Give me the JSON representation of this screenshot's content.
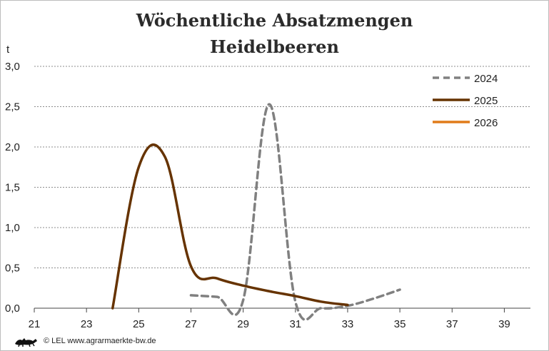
{
  "chart_data": {
    "type": "line",
    "title": "Wöchentliche Absatzmengen",
    "subtitle": "Heidelbeeren",
    "ylabel": "t",
    "xlabel": "",
    "xlim": [
      21,
      40
    ],
    "ylim": [
      0,
      3.0
    ],
    "x_ticks": [
      "21",
      "23",
      "25",
      "27",
      "29",
      "31",
      "33",
      "35",
      "37",
      "39"
    ],
    "y_ticks": [
      "0,0",
      "0,5",
      "1,0",
      "1,5",
      "2,0",
      "2,5",
      "3,0"
    ],
    "grid": true,
    "legend_position": "top-right",
    "series": [
      {
        "name": "2024",
        "color": "#808080",
        "dash": true,
        "x": [
          27,
          28,
          29,
          30,
          31,
          32,
          33,
          34,
          35
        ],
        "y": [
          0.16,
          0.14,
          0.1,
          2.53,
          0.08,
          0.0,
          0.03,
          0.12,
          0.23
        ]
      },
      {
        "name": "2025",
        "color": "#663300",
        "dash": false,
        "x": [
          24,
          25,
          26,
          27,
          28,
          29,
          30,
          31,
          32,
          33
        ],
        "y": [
          0.0,
          1.75,
          1.88,
          0.52,
          0.37,
          0.28,
          0.21,
          0.15,
          0.08,
          0.04
        ]
      },
      {
        "name": "2026",
        "color": "#e07b1a",
        "dash": false,
        "x": [],
        "y": []
      }
    ]
  },
  "footer": {
    "logo_icon": "bw-lions-logo-icon",
    "text": "© LEL www.agrarmaerkte-bw.de"
  }
}
